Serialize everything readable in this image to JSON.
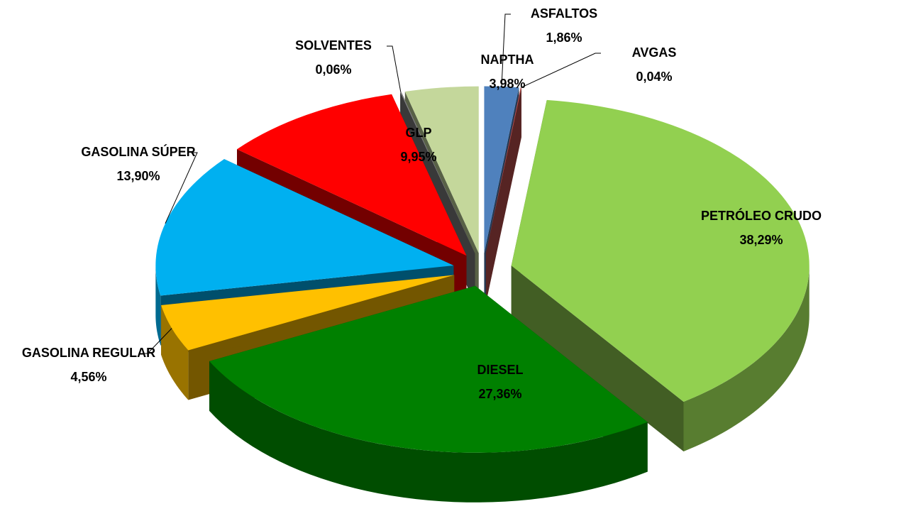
{
  "chart_data": {
    "type": "pie",
    "categories": [
      "ASFALTOS",
      "AVGAS",
      "PETRÓLEO CRUDO",
      "DIESEL",
      "GASOLINA REGULAR",
      "GASOLINA SÚPER",
      "GLP",
      "SOLVENTES",
      "NAPTHA"
    ],
    "values": [
      1.86,
      0.04,
      38.29,
      27.36,
      4.56,
      13.9,
      9.95,
      0.06,
      3.98
    ],
    "value_labels": [
      "1,86%",
      "0,04%",
      "38,29%",
      "27,36%",
      "4,56%",
      "13,90%",
      "9,95%",
      "0,06%",
      "3,98%"
    ],
    "colors": [
      "#4f81bd",
      "#c0504d",
      "#92d050",
      "#008000",
      "#ffc000",
      "#00b0f0",
      "#ff0000",
      "#7f7f7f",
      "#c4d79b"
    ]
  }
}
